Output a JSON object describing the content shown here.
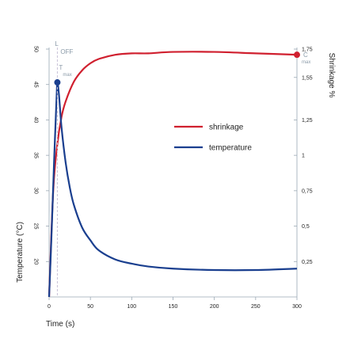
{
  "chart_data": {
    "type": "line",
    "xlabel": "Time (s)",
    "ylabel_left": "Temperature (°C)",
    "ylabel_right": "Shrinkage %",
    "xlim": [
      0,
      300
    ],
    "ylim_left": [
      15,
      50
    ],
    "ylim_right": [
      0,
      1.75
    ],
    "x_ticks": [
      0,
      50,
      100,
      150,
      200,
      250,
      300
    ],
    "x_tick_labels": [
      "0",
      "50",
      "100",
      "150",
      "200",
      "250",
      "300"
    ],
    "y_left_ticks": [
      20,
      25,
      30,
      35,
      40,
      45,
      50
    ],
    "y_left_tick_labels": [
      "20",
      "25",
      "30",
      "35",
      "40",
      "45",
      "50"
    ],
    "y_right_ticks": [
      0.25,
      0.5,
      0.75,
      1,
      1.25,
      1.55,
      1.75
    ],
    "y_right_tick_labels": [
      "0,25",
      "0,5",
      "0,75",
      "1",
      "1,25",
      "1,55",
      "1,75"
    ],
    "grid": false,
    "legend_position": "center-right",
    "series": [
      {
        "name": "shrinkage",
        "axis": "right",
        "color": "#d0202f",
        "x": [
          0,
          5,
          10,
          15,
          20,
          30,
          40,
          50,
          60,
          80,
          100,
          120,
          150,
          200,
          250,
          300
        ],
        "y": [
          0,
          0.75,
          1.08,
          1.27,
          1.38,
          1.52,
          1.6,
          1.65,
          1.68,
          1.71,
          1.72,
          1.72,
          1.73,
          1.73,
          1.72,
          1.71
        ]
      },
      {
        "name": "temperature",
        "axis": "left",
        "color": "#1a3f8f",
        "x": [
          0,
          3,
          6,
          9,
          10,
          12,
          15,
          20,
          25,
          30,
          40,
          50,
          60,
          80,
          100,
          120,
          150,
          200,
          250,
          300
        ],
        "y": [
          15,
          24,
          34,
          43,
          45.3,
          43.5,
          39,
          34,
          30.5,
          28,
          24.8,
          23,
          21.6,
          20.3,
          19.7,
          19.3,
          19,
          18.8,
          18.8,
          19
        ]
      }
    ],
    "markers": {
      "off_label": "OFF",
      "off_prefix": "L",
      "tmax_label": "T",
      "tmax_sub": "max",
      "cmax_label": "C",
      "cmax_sub": "max",
      "tmax_point": {
        "x": 10,
        "y": 45.3
      },
      "cmax_point": {
        "x": 300,
        "y": 1.71
      },
      "off_x": 10
    }
  }
}
